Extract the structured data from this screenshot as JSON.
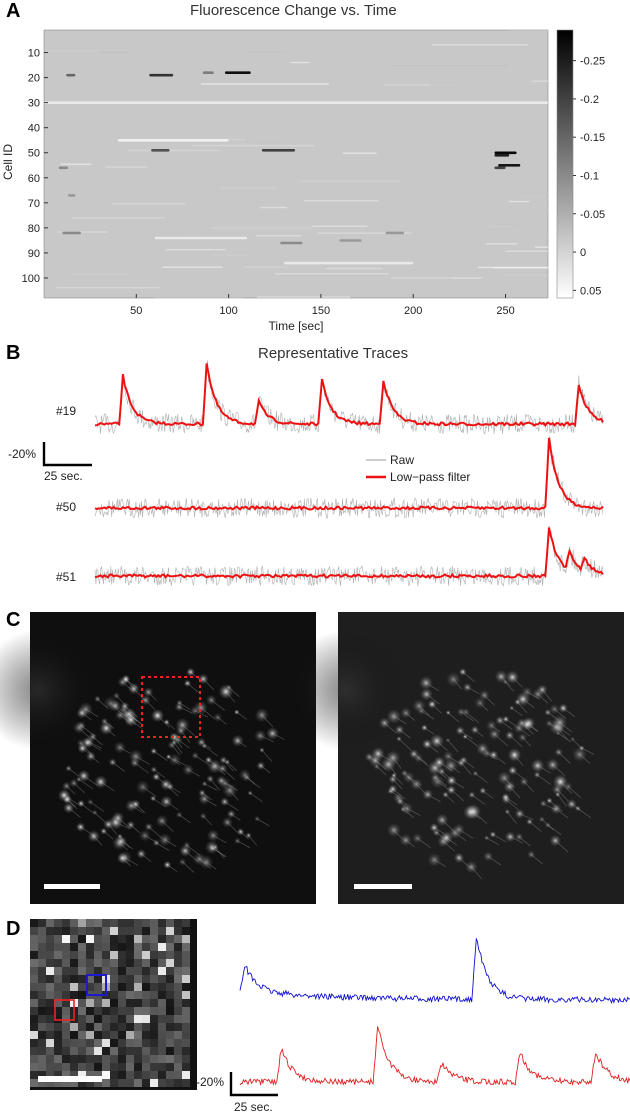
{
  "panels": {
    "a": "A",
    "b": "B",
    "c": "C",
    "d": "D"
  },
  "chart_data": [
    {
      "type": "heatmap",
      "title": "Fluorescence Change vs. Time",
      "xlabel": "Time [sec]",
      "ylabel": "Cell ID",
      "xticks": [
        50,
        100,
        150,
        200,
        250
      ],
      "xlim": [
        0,
        273
      ],
      "yticks": [
        10,
        20,
        30,
        40,
        50,
        60,
        70,
        80,
        90,
        100
      ],
      "ylim": [
        1,
        108
      ],
      "colorbar": {
        "ticks": [
          "-0.25",
          "-0.2",
          "-0.15",
          "-0.1",
          "-0.05",
          "0",
          "0.05"
        ],
        "tick_values": [
          -0.25,
          -0.2,
          -0.15,
          -0.1,
          -0.05,
          0,
          0.05
        ],
        "range": [
          -0.29,
          0.06
        ],
        "colormap": "gray (dark = negative)"
      },
      "events": [
        {
          "cell": 19,
          "t0": 12,
          "t1": 17,
          "v": -0.15
        },
        {
          "cell": 19,
          "t0": 57,
          "t1": 70,
          "v": -0.22
        },
        {
          "cell": 18,
          "t0": 86,
          "t1": 92,
          "v": -0.12
        },
        {
          "cell": 18,
          "t0": 98,
          "t1": 112,
          "v": -0.27
        },
        {
          "cell": 49,
          "t0": 58,
          "t1": 68,
          "v": -0.18
        },
        {
          "cell": 49,
          "t0": 118,
          "t1": 136,
          "v": -0.2
        },
        {
          "cell": 50,
          "t0": 244,
          "t1": 256,
          "v": -0.28
        },
        {
          "cell": 51,
          "t0": 244,
          "t1": 252,
          "v": -0.25
        },
        {
          "cell": 55,
          "t0": 246,
          "t1": 258,
          "v": -0.26
        },
        {
          "cell": 56,
          "t0": 8,
          "t1": 13,
          "v": -0.1
        },
        {
          "cell": 56,
          "t0": 244,
          "t1": 250,
          "v": -0.2
        },
        {
          "cell": 67,
          "t0": 13,
          "t1": 17,
          "v": -0.08
        },
        {
          "cell": 82,
          "t0": 10,
          "t1": 20,
          "v": -0.1
        },
        {
          "cell": 82,
          "t0": 185,
          "t1": 195,
          "v": -0.08
        },
        {
          "cell": 86,
          "t0": 128,
          "t1": 140,
          "v": -0.1
        },
        {
          "cell": 85,
          "t0": 160,
          "t1": 172,
          "v": -0.08
        },
        {
          "cell": 30,
          "t0": 0,
          "t1": 273,
          "v": 0.03
        },
        {
          "cell": 45,
          "t0": 40,
          "t1": 100,
          "v": 0.04
        },
        {
          "cell": 84,
          "t0": 60,
          "t1": 110,
          "v": 0.03
        },
        {
          "cell": 94,
          "t0": 130,
          "t1": 200,
          "v": 0.03
        }
      ]
    },
    {
      "type": "line",
      "title": "Representative Traces",
      "xlim": [
        0,
        273
      ],
      "legend": {
        "placement": "center",
        "entries": [
          "Raw",
          "Low−pass filter"
        ]
      },
      "scalebar": {
        "y_label": "-20%",
        "x_label": "25 sec."
      },
      "series": [
        {
          "name": "#19",
          "peaks": [
            [
              15,
              0.22
            ],
            [
              60,
              0.28
            ],
            [
              88,
              0.1
            ],
            [
              122,
              0.2
            ],
            [
              155,
              0.2
            ],
            [
              260,
              0.18
            ]
          ]
        },
        {
          "name": "#50",
          "peaks": [
            [
              244,
              0.32
            ]
          ]
        },
        {
          "name": "#51",
          "peaks": [
            [
              244,
              0.22
            ],
            [
              255,
              0.09
            ],
            [
              263,
              0.06
            ]
          ]
        }
      ]
    },
    {
      "type": "line",
      "scalebar": {
        "y_label": "-20%",
        "x_label": "25 sec."
      },
      "series": [
        {
          "color": "#1111cc",
          "peaks": [
            [
              2,
              0.18
            ],
            [
              103,
              0.42
            ]
          ]
        },
        {
          "color": "#e02020",
          "peaks": [
            [
              18,
              0.22
            ],
            [
              60,
              0.38
            ],
            [
              88,
              0.12
            ],
            [
              122,
              0.2
            ],
            [
              155,
              0.2
            ]
          ]
        }
      ]
    }
  ],
  "colors": {
    "raw": "#9a9a9a",
    "filtered": "#ee1111",
    "blue_trace": "#1111cc",
    "red_trace": "#e02020",
    "roi_red": "#ee2222",
    "roi_blue": "#1a1ad0"
  }
}
